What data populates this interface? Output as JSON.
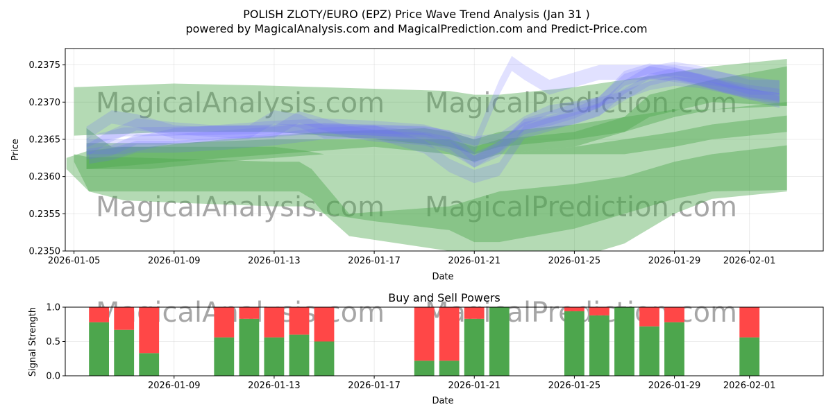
{
  "chart_data": [
    {
      "type": "area",
      "title": "POLISH ZLOTY/EURO (EPZ) Price Wave Trend Analysis (Jan 31 )",
      "subtitle": "powered by MagicalAnalysis.com and MagicalPrediction.com and Predict-Price.com",
      "xlabel": "Date",
      "ylabel": "Price",
      "x_start": "2026-01-05",
      "xlim_days": [
        -0.35,
        29.95
      ],
      "ylim": [
        0.235,
        0.23772
      ],
      "xticks": [
        {
          "day": 0,
          "label": "2026-01-05"
        },
        {
          "day": 4,
          "label": "2026-01-09"
        },
        {
          "day": 8,
          "label": "2026-01-13"
        },
        {
          "day": 12,
          "label": "2026-01-17"
        },
        {
          "day": 16,
          "label": "2026-01-21"
        },
        {
          "day": 20,
          "label": "2026-01-25"
        },
        {
          "day": 24,
          "label": "2026-01-29"
        },
        {
          "day": 27,
          "label": "2026-02-01"
        }
      ],
      "yticks": [
        {
          "value": 0.235,
          "label": "0.2350"
        },
        {
          "value": 0.2355,
          "label": "0.2355"
        },
        {
          "value": 0.236,
          "label": "0.2360"
        },
        {
          "value": 0.2365,
          "label": "0.2365"
        },
        {
          "value": 0.237,
          "label": "0.2370"
        },
        {
          "value": 0.2375,
          "label": "0.2375"
        }
      ],
      "watermarks": [
        "MagicalAnalysis.com",
        "MagicalPrediction.com",
        "MagicalAnalysis.com",
        "MagicalPrediction.com"
      ],
      "green_bands": [
        {
          "x": [
            0,
            4,
            8,
            12,
            15,
            16,
            17,
            20,
            22,
            24,
            25.5,
            28.5
          ],
          "upper": [
            0.2372,
            0.23725,
            0.23722,
            0.23718,
            0.23715,
            0.2371,
            0.2371,
            0.2372,
            0.2373,
            0.2374,
            0.23748,
            0.23758
          ],
          "lower": [
            0.23655,
            0.2366,
            0.2366,
            0.2365,
            0.2364,
            0.2363,
            0.2363,
            0.2363,
            0.2363,
            0.2364,
            0.2365,
            0.2366
          ]
        },
        {
          "x": [
            -0.3,
            0.6,
            2,
            4,
            8,
            9.2,
            10,
            12,
            15,
            16,
            17,
            20,
            22,
            24,
            25.5,
            28.5
          ],
          "upper": [
            0.23625,
            0.23635,
            0.2364,
            0.2364,
            0.2364,
            0.23635,
            0.2363,
            0.2363,
            0.2363,
            0.2363,
            0.2363,
            0.2364,
            0.2365,
            0.2366,
            0.2367,
            0.23682
          ],
          "lower": [
            0.2361,
            0.2358,
            0.23568,
            0.23565,
            0.2356,
            0.2356,
            0.2355,
            0.2354,
            0.23528,
            0.23512,
            0.23512,
            0.2353,
            0.2355,
            0.2357,
            0.2358,
            0.23582
          ]
        },
        {
          "x": [
            0,
            0.6,
            2,
            4,
            8,
            9,
            9.5,
            10,
            11,
            15,
            16,
            17,
            20,
            22,
            24,
            25.5,
            28.5
          ],
          "upper": [
            0.2363,
            0.23626,
            0.23626,
            0.23624,
            0.2362,
            0.2362,
            0.2361,
            0.2359,
            0.2355,
            0.2356,
            0.2357,
            0.2358,
            0.2359,
            0.236,
            0.2362,
            0.2363,
            0.23642
          ],
          "lower": [
            0.2362,
            0.2358,
            0.2358,
            0.2358,
            0.2358,
            0.2358,
            0.2357,
            0.2355,
            0.2352,
            0.235,
            0.2349,
            0.2348,
            0.2349,
            0.2351,
            0.2355,
            0.2357,
            0.2358
          ]
        },
        {
          "x": [
            0.5,
            1.5,
            3,
            6,
            10,
            14,
            15,
            16,
            17,
            20,
            22,
            24,
            25.5,
            28.5
          ],
          "upper": [
            0.23665,
            0.2364,
            0.2364,
            0.2365,
            0.2366,
            0.23665,
            0.2366,
            0.2365,
            0.2366,
            0.2367,
            0.2368,
            0.2369,
            0.2369,
            0.237
          ],
          "lower": [
            0.2361,
            0.2361,
            0.2361,
            0.2362,
            0.2363,
            0.2363,
            0.2363,
            0.2363,
            0.2364,
            0.2365,
            0.2366,
            0.2368,
            0.2369,
            0.23695
          ]
        },
        {
          "x": [
            0.5,
            4,
            8,
            12,
            15,
            16,
            17,
            20,
            22,
            23,
            25.5,
            28.5
          ],
          "upper": [
            0.23645,
            0.23645,
            0.2365,
            0.2365,
            0.2365,
            0.2364,
            0.2365,
            0.2366,
            0.2368,
            0.2371,
            0.2373,
            0.23748
          ],
          "lower": [
            0.2361,
            0.2362,
            0.2363,
            0.2364,
            0.2363,
            0.2362,
            0.2363,
            0.2364,
            0.2366,
            0.2368,
            0.237,
            0.23695
          ]
        }
      ],
      "blue_bands": [
        {
          "x": [
            0.5,
            1,
            2,
            4,
            6,
            8,
            10,
            12,
            14,
            15,
            16,
            17,
            18,
            19,
            20,
            21,
            22,
            23,
            24,
            25,
            26,
            27,
            28.2
          ],
          "mid": [
            0.23645,
            0.23652,
            0.2366,
            0.23661,
            0.23662,
            0.23664,
            0.23665,
            0.23664,
            0.23662,
            0.23656,
            0.23648,
            0.23652,
            0.23675,
            0.2369,
            0.23695,
            0.237,
            0.2371,
            0.23722,
            0.23728,
            0.23725,
            0.23718,
            0.23712,
            0.23706
          ],
          "half": 6e-05
        },
        {
          "x": [
            0.6,
            1.5,
            2.5,
            4,
            6,
            8,
            10,
            12,
            14,
            15,
            16,
            17,
            18,
            19,
            20,
            21,
            22,
            23,
            24,
            25,
            26,
            27,
            28.2
          ],
          "mid": [
            0.23625,
            0.2363,
            0.2364,
            0.2364,
            0.23644,
            0.2365,
            0.23658,
            0.2366,
            0.23652,
            0.23645,
            0.2362,
            0.2364,
            0.23665,
            0.23672,
            0.23678,
            0.2369,
            0.2371,
            0.2373,
            0.23738,
            0.2373,
            0.2372,
            0.23712,
            0.237
          ],
          "half": 8e-05
        },
        {
          "x": [
            0.5,
            1.5,
            2.5,
            4,
            5,
            6,
            7,
            8,
            9,
            10,
            11,
            12,
            13,
            14,
            15,
            16,
            17,
            18,
            19,
            20,
            21,
            22,
            23,
            24,
            25,
            26,
            27,
            28.2
          ],
          "mid": [
            0.23658,
            0.2368,
            0.23675,
            0.2366,
            0.23658,
            0.2366,
            0.2366,
            0.2368,
            0.23675,
            0.2366,
            0.2366,
            0.2366,
            0.2365,
            0.2364,
            0.23615,
            0.236,
            0.2361,
            0.2366,
            0.2367,
            0.2368,
            0.2369,
            0.2372,
            0.2374,
            0.23745,
            0.2374,
            0.2373,
            0.23725,
            0.2372
          ],
          "half": 9e-05
        },
        {
          "x": [
            0.5,
            1.5,
            2.5,
            4,
            6,
            8,
            10,
            12,
            14,
            15,
            16,
            17,
            18,
            19,
            20,
            21,
            22,
            23,
            24,
            25,
            26,
            27,
            28.2
          ],
          "mid": [
            0.2363,
            0.23635,
            0.2365,
            0.2365,
            0.23655,
            0.2366,
            0.23665,
            0.23662,
            0.2366,
            0.23655,
            0.23625,
            0.2364,
            0.2367,
            0.23675,
            0.23685,
            0.237,
            0.23735,
            0.23745,
            0.2374,
            0.2373,
            0.2372,
            0.2371,
            0.23705
          ],
          "half": 7e-05
        },
        {
          "x": [
            0.5,
            2,
            4,
            6,
            8,
            10,
            12,
            14,
            15,
            16,
            17,
            17.5,
            18,
            19,
            20,
            21,
            22,
            23,
            24,
            25,
            26,
            27,
            28.2
          ],
          "mid": [
            0.2364,
            0.2364,
            0.23655,
            0.2366,
            0.23665,
            0.23668,
            0.23665,
            0.2366,
            0.2365,
            0.2364,
            0.2372,
            0.23752,
            0.2374,
            0.2372,
            0.2373,
            0.2374,
            0.2374,
            0.2374,
            0.2374,
            0.23735,
            0.2373,
            0.2372,
            0.2372
          ],
          "half": 0.0001
        },
        {
          "x": [
            0.5,
            1.5,
            2.5,
            4,
            6,
            8,
            9,
            10,
            11,
            12,
            14,
            15,
            16,
            17,
            18,
            19,
            20,
            21,
            22,
            23,
            24,
            25,
            26,
            27,
            28.2
          ],
          "mid": [
            0.23635,
            0.23655,
            0.2367,
            0.23665,
            0.2366,
            0.2366,
            0.2368,
            0.2367,
            0.2366,
            0.23655,
            0.2365,
            0.2364,
            0.2362,
            0.23635,
            0.2367,
            0.2368,
            0.2369,
            0.237,
            0.2373,
            0.2374,
            0.23735,
            0.2373,
            0.23722,
            0.23715,
            0.2371
          ],
          "half": 8e-05
        }
      ]
    },
    {
      "type": "bar",
      "title": "Buy and Sell Powers",
      "xlabel": "Date",
      "ylabel": "Signal Strength",
      "ylim": [
        0,
        1
      ],
      "xlim_days": [
        -0.35,
        29.95
      ],
      "xticks": [
        {
          "day": 4,
          "label": "2026-01-09"
        },
        {
          "day": 8,
          "label": "2026-01-13"
        },
        {
          "day": 12,
          "label": "2026-01-17"
        },
        {
          "day": 16,
          "label": "2026-01-21"
        },
        {
          "day": 20,
          "label": "2026-01-25"
        },
        {
          "day": 24,
          "label": "2026-01-29"
        },
        {
          "day": 27,
          "label": "2026-02-01"
        }
      ],
      "yticks": [
        {
          "value": 0,
          "label": "0.0"
        },
        {
          "value": 0.5,
          "label": "0.5"
        },
        {
          "value": 1,
          "label": "1.0"
        }
      ],
      "watermarks": [
        "MagicalAnalysis.com",
        "MagicalPrediction.com"
      ],
      "series": [
        {
          "name": "Buy",
          "color": "#4da64d"
        },
        {
          "name": "Sell",
          "color": "#ff4747"
        }
      ],
      "bars": [
        {
          "day": 1,
          "buy": 0.78
        },
        {
          "day": 2,
          "buy": 0.67
        },
        {
          "day": 3,
          "buy": 0.33
        },
        {
          "day": 6,
          "buy": 0.56
        },
        {
          "day": 7,
          "buy": 0.83
        },
        {
          "day": 8,
          "buy": 0.56
        },
        {
          "day": 9,
          "buy": 0.6
        },
        {
          "day": 10,
          "buy": 0.5
        },
        {
          "day": 14,
          "buy": 0.22
        },
        {
          "day": 15,
          "buy": 0.22
        },
        {
          "day": 16,
          "buy": 0.83
        },
        {
          "day": 17,
          "buy": 1.0
        },
        {
          "day": 20,
          "buy": 0.94
        },
        {
          "day": 21,
          "buy": 0.88
        },
        {
          "day": 22,
          "buy": 1.0
        },
        {
          "day": 23,
          "buy": 0.72
        },
        {
          "day": 24,
          "buy": 0.78
        },
        {
          "day": 27,
          "buy": 0.56
        }
      ]
    }
  ]
}
